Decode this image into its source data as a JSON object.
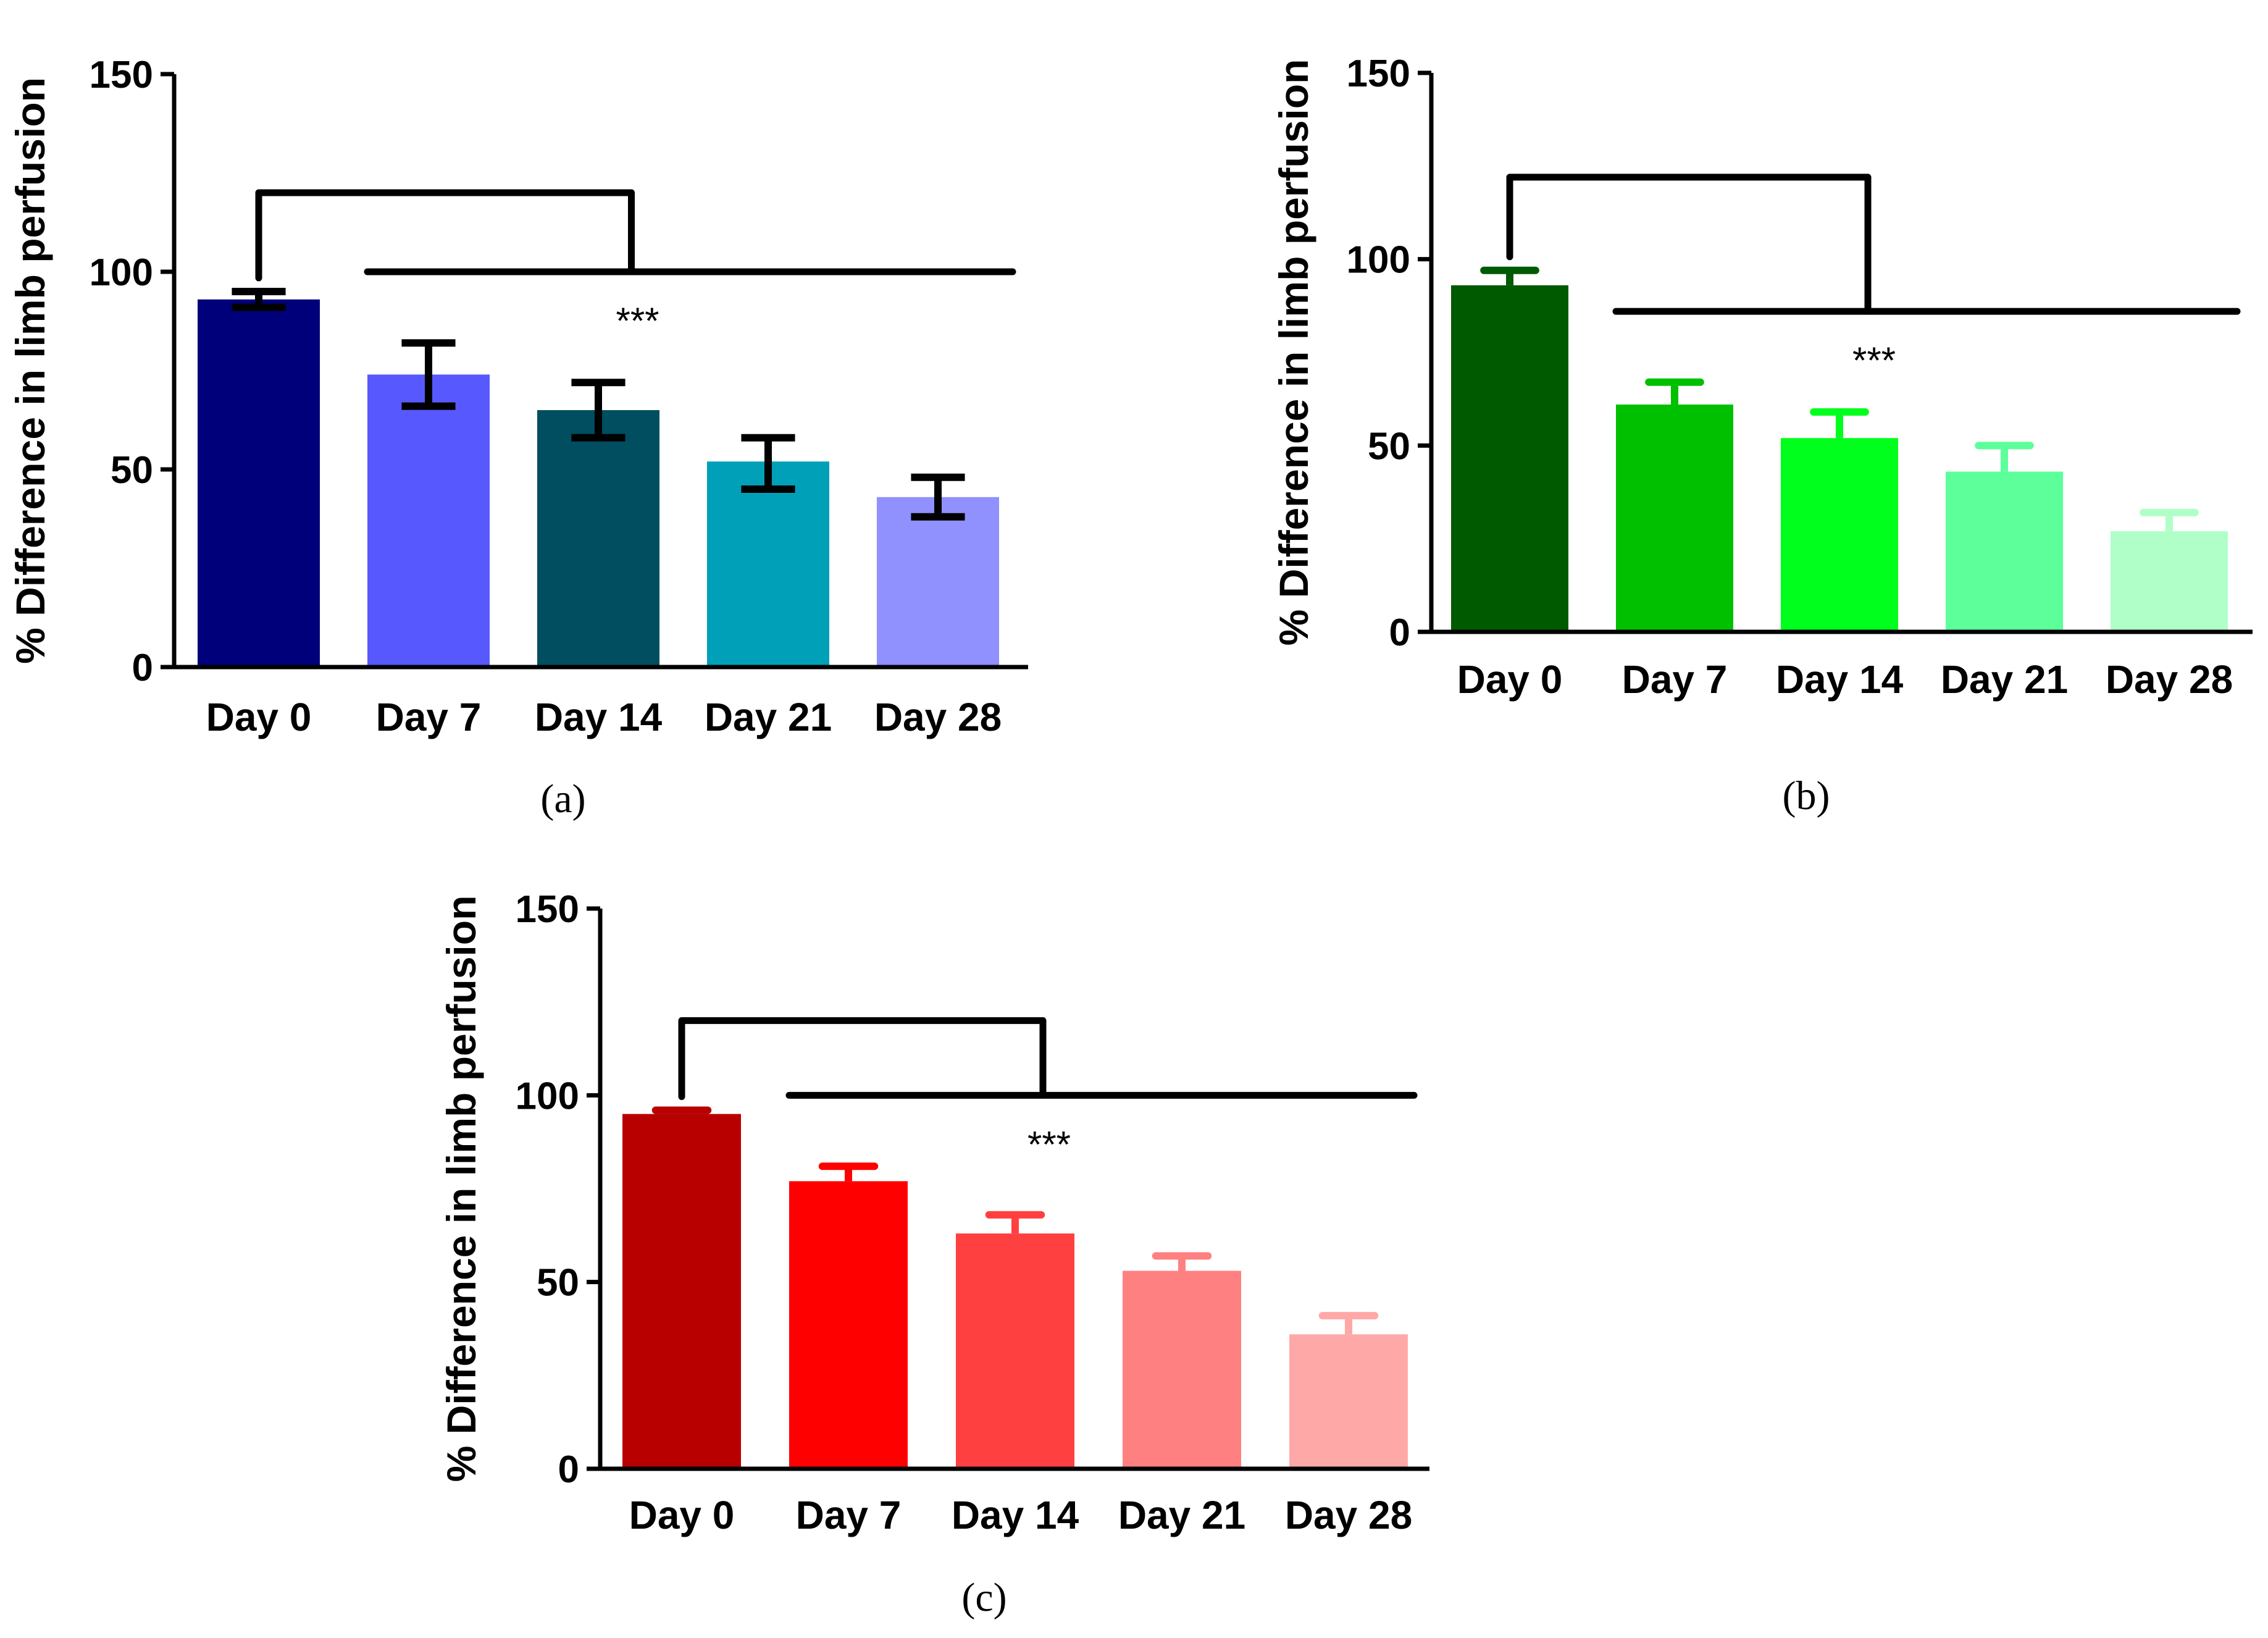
{
  "chart_data": [
    {
      "type": "bar",
      "panel_label": "(a)",
      "categories": [
        "Day 0",
        "Day 7",
        "Day 14",
        "Day 21",
        "Day 28"
      ],
      "values": [
        93,
        74,
        65,
        52,
        43
      ],
      "errors": [
        {
          "low": 91,
          "high": 95
        },
        {
          "low": 66,
          "high": 82
        },
        {
          "low": 58,
          "high": 72
        },
        {
          "low": 45,
          "high": 58
        },
        {
          "low": 38,
          "high": 48
        }
      ],
      "colors": [
        "#00007a",
        "#5858ff",
        "#004e60",
        "#00a0b8",
        "#9090ff"
      ],
      "error_style": "both",
      "ylabel": "% Difference in limb perfusion",
      "ylim": [
        0,
        150
      ],
      "yticks": [
        "0",
        "50",
        "100",
        "150"
      ],
      "significance": {
        "bracket_top": 120,
        "line_level": 100,
        "label": "***"
      }
    },
    {
      "type": "bar",
      "panel_label": "(b)",
      "categories": [
        "Day 0",
        "Day 7",
        "Day 14",
        "Day 21",
        "Day 28"
      ],
      "values": [
        93,
        61,
        52,
        43,
        27
      ],
      "errors": [
        {
          "low": 93,
          "high": 97
        },
        {
          "low": 61,
          "high": 67
        },
        {
          "low": 52,
          "high": 59
        },
        {
          "low": 43,
          "high": 50
        },
        {
          "low": 27,
          "high": 32
        }
      ],
      "colors": [
        "#005a00",
        "#00c000",
        "#00ff1c",
        "#5cff9a",
        "#b0ffc8"
      ],
      "error_style": "upper",
      "ylabel": "% Difference in limb perfusion",
      "ylim": [
        0,
        150
      ],
      "yticks": [
        "0",
        "50",
        "100",
        "150"
      ],
      "significance": {
        "bracket_top": 122,
        "line_level": 86,
        "label": "***"
      }
    },
    {
      "type": "bar",
      "panel_label": "(c)",
      "categories": [
        "Day 0",
        "Day 7",
        "Day 14",
        "Day 21",
        "Day 28"
      ],
      "values": [
        95,
        77,
        63,
        53,
        36
      ],
      "errors": [
        {
          "low": 95,
          "high": 96
        },
        {
          "low": 77,
          "high": 81
        },
        {
          "low": 63,
          "high": 68
        },
        {
          "low": 53,
          "high": 57
        },
        {
          "low": 36,
          "high": 41
        }
      ],
      "colors": [
        "#b80000",
        "#ff0000",
        "#ff4040",
        "#ff8080",
        "#ffa8a8"
      ],
      "error_style": "upper",
      "ylabel": "% Difference in limb perfusion",
      "ylim": [
        0,
        150
      ],
      "yticks": [
        "0",
        "50",
        "100",
        "150"
      ],
      "significance": {
        "bracket_top": 120,
        "line_level": 100,
        "label": "***"
      }
    }
  ]
}
